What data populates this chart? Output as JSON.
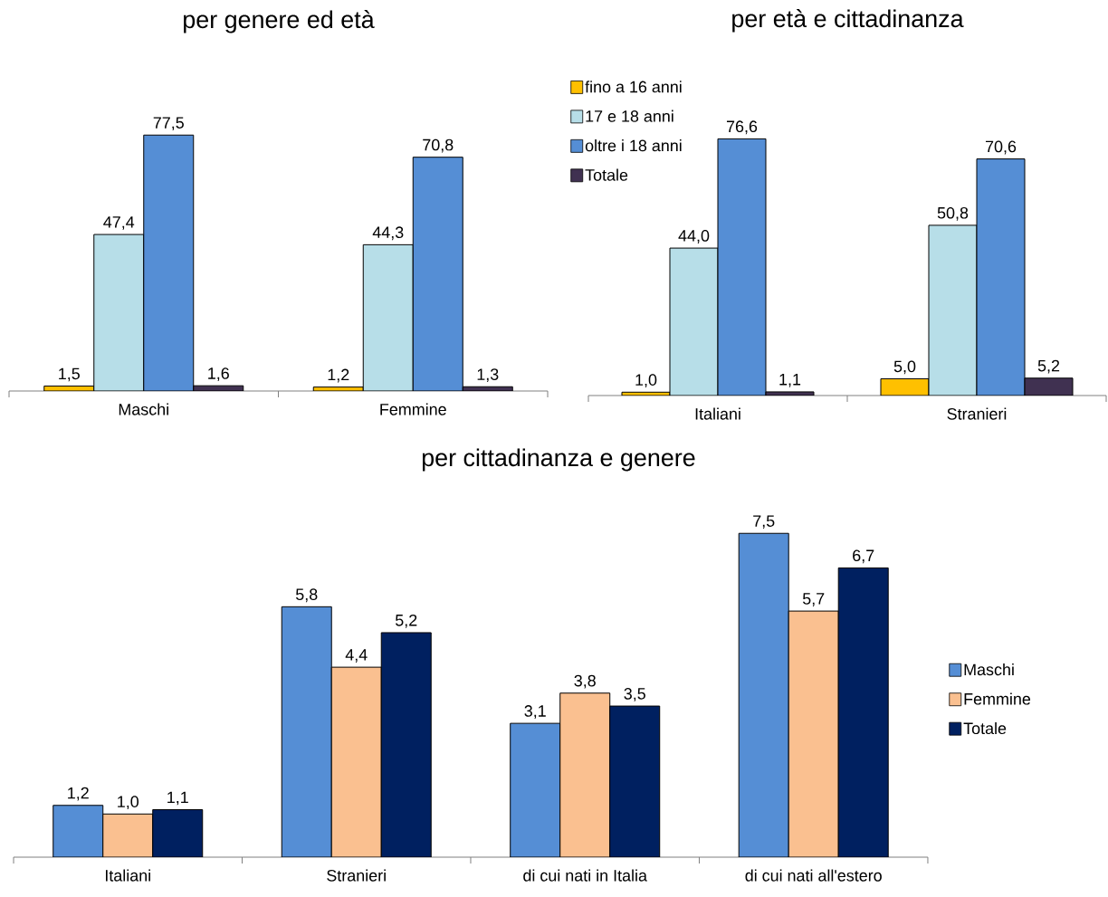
{
  "chart_data": [
    {
      "type": "bar",
      "title": "per genere ed età",
      "categories": [
        "Maschi",
        "Femmine"
      ],
      "legend": false,
      "series": [
        {
          "color": "#ffc000",
          "values": [
            1.5,
            1.2
          ],
          "value_labels": [
            "1,5",
            "1,2"
          ]
        },
        {
          "color": "#b7dee8",
          "values": [
            47.4,
            44.3
          ],
          "value_labels": [
            "47,4",
            "44,3"
          ]
        },
        {
          "color": "#558ed5",
          "values": [
            77.5,
            70.8
          ],
          "value_labels": [
            "77,5",
            "70,8"
          ]
        },
        {
          "color": "#403151",
          "values": [
            1.6,
            1.3
          ],
          "value_labels": [
            "1,6",
            "1,3"
          ]
        }
      ]
    },
    {
      "type": "bar",
      "title": "per età e cittadinanza",
      "categories": [
        "Italiani",
        "Stranieri"
      ],
      "legend": "top left",
      "series": [
        {
          "name": "fino a 16 anni",
          "color": "#ffc000",
          "values": [
            1.0,
            5.0
          ],
          "value_labels": [
            "1,0",
            "5,0"
          ]
        },
        {
          "name": "17 e 18 anni",
          "color": "#b7dee8",
          "values": [
            44.0,
            50.8
          ],
          "value_labels": [
            "44,0",
            "50,8"
          ]
        },
        {
          "name": "oltre i 18 anni",
          "color": "#558ed5",
          "values": [
            76.6,
            70.6
          ],
          "value_labels": [
            "76,6",
            "70,6"
          ]
        },
        {
          "name": "Totale",
          "color": "#403151",
          "values": [
            1.1,
            5.2
          ],
          "value_labels": [
            "1,1",
            "5,2"
          ]
        }
      ]
    },
    {
      "type": "bar",
      "title": "per cittadinanza e genere",
      "categories": [
        "Italiani",
        "Stranieri",
        "di cui nati in Italia",
        "di cui nati all'estero"
      ],
      "legend": "right",
      "series": [
        {
          "name": "Maschi",
          "color": "#558ed5",
          "values": [
            1.2,
            5.8,
            3.1,
            7.5
          ],
          "value_labels": [
            "1,2",
            "5,8",
            "3,1",
            "7,5"
          ]
        },
        {
          "name": "Femmine",
          "color": "#fac090",
          "values": [
            1.0,
            4.4,
            3.8,
            5.7
          ],
          "value_labels": [
            "1,0",
            "4,4",
            "3,8",
            "5,7"
          ]
        },
        {
          "name": "Totale",
          "color": "#002060",
          "values": [
            1.1,
            5.2,
            3.5,
            6.7
          ],
          "value_labels": [
            "1,1",
            "5,2",
            "3,5",
            "6,7"
          ]
        }
      ]
    }
  ]
}
